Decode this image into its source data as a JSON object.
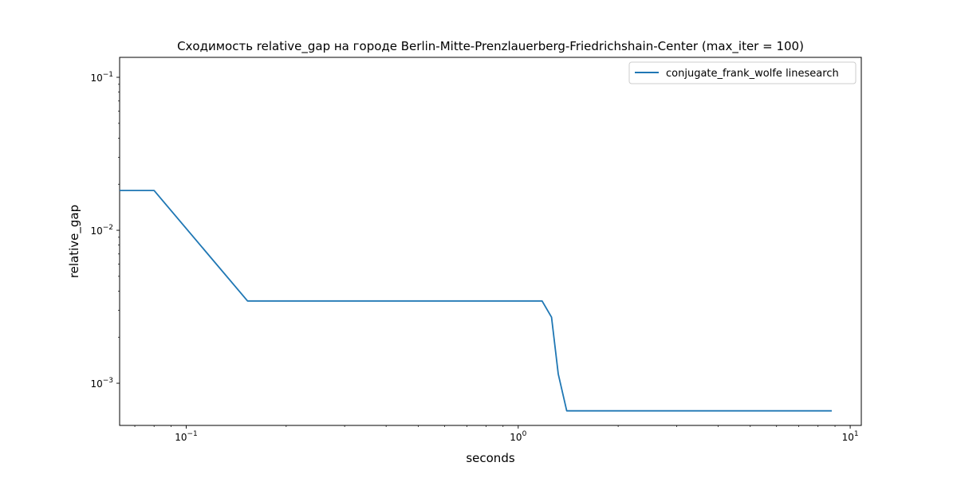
{
  "chart_data": {
    "type": "line",
    "title": "Сходимость relative_gap на городе Berlin-Mitte-Prenzlauerberg-Friedrichshain-Center  (max_iter = 100)",
    "xlabel": "seconds",
    "ylabel": "relative_gap",
    "xscale": "log",
    "yscale": "log",
    "xlim": [
      0.063,
      10.8
    ],
    "ylim": [
      0.00053,
      0.135
    ],
    "xticks": [
      {
        "value": 0.1,
        "base": "10",
        "exp": "−1"
      },
      {
        "value": 1,
        "base": "10",
        "exp": "0"
      },
      {
        "value": 10,
        "base": "10",
        "exp": "1"
      }
    ],
    "yticks": [
      {
        "value": 0.001,
        "base": "10",
        "exp": "−3"
      },
      {
        "value": 0.01,
        "base": "10",
        "exp": "−2"
      },
      {
        "value": 0.1,
        "base": "10",
        "exp": "−1"
      }
    ],
    "grid": false,
    "legend_position": "upper-right",
    "series": [
      {
        "name": "conjugate_frank_wolfe linesearch",
        "color": "#1f77b4",
        "x": [
          0.063,
          0.08,
          0.153,
          1.18,
          1.26,
          1.32,
          1.4,
          8.8
        ],
        "y": [
          0.0182,
          0.0182,
          0.00345,
          0.00345,
          0.0027,
          0.00115,
          0.00066,
          0.00066
        ]
      }
    ]
  }
}
